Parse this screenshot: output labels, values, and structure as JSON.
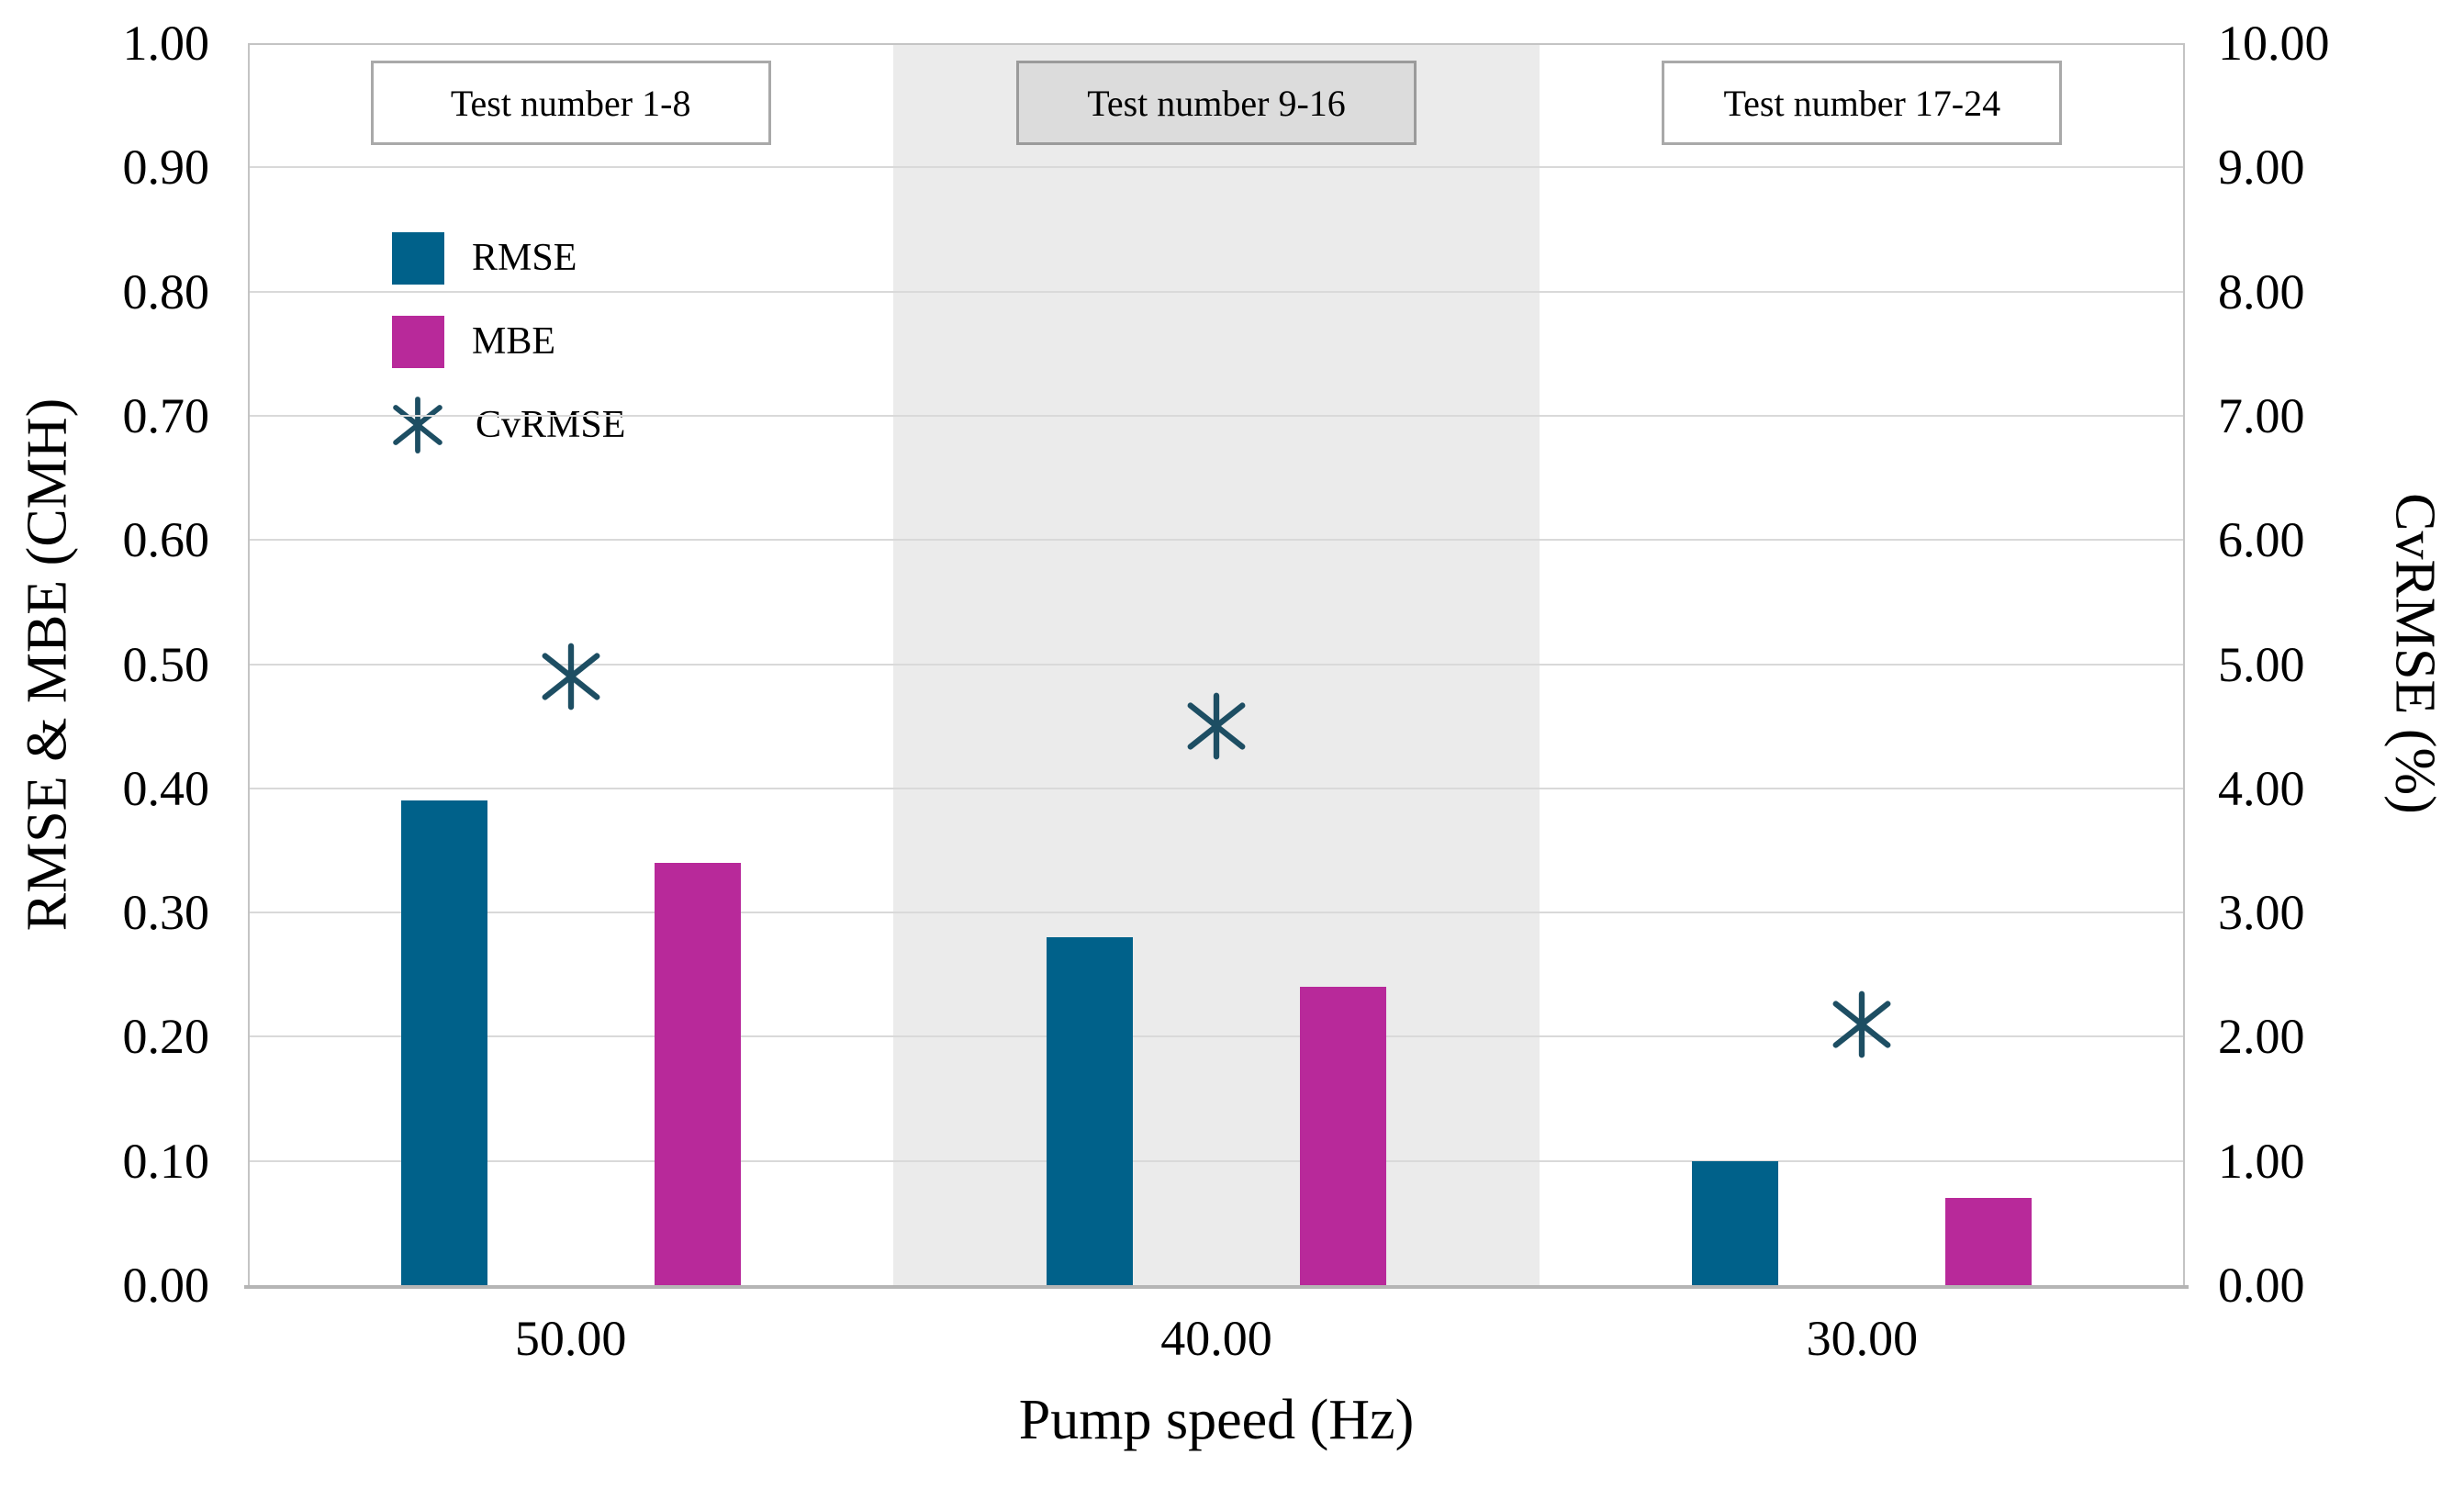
{
  "chart_data": {
    "type": "bar",
    "title": "",
    "xlabel": "Pump speed (Hz)",
    "ylabel_left": "RMSE & MBE (CMH)",
    "ylabel_right": "CvRMSE (%)",
    "categories": [
      "50.00",
      "40.00",
      "30.00"
    ],
    "series": [
      {
        "name": "RMSE",
        "render": "bar",
        "axis": "left",
        "color": "#00618a",
        "values": [
          0.39,
          0.28,
          0.1
        ]
      },
      {
        "name": "MBE",
        "render": "bar",
        "axis": "left",
        "color": "#b8299a",
        "values": [
          0.34,
          0.24,
          0.07
        ]
      },
      {
        "name": "CvRMSE",
        "render": "marker",
        "axis": "right",
        "color": "#1d4e63",
        "values": [
          4.9,
          4.5,
          2.1
        ]
      }
    ],
    "ylim_left": [
      0.0,
      1.0
    ],
    "ylim_right": [
      0.0,
      10.0
    ],
    "left_axis_ticks": [
      "0.00",
      "0.10",
      "0.20",
      "0.30",
      "0.40",
      "0.50",
      "0.60",
      "0.70",
      "0.80",
      "0.90",
      "1.00"
    ],
    "right_axis_ticks": [
      "0.00",
      "1.00",
      "2.00",
      "3.00",
      "4.00",
      "5.00",
      "6.00",
      "7.00",
      "8.00",
      "9.00",
      "10.00"
    ],
    "grid": "horizontal",
    "legend_position": "upper-left-inside",
    "annotations": [
      {
        "label": "Test number 1-8",
        "category_index": 0,
        "shaded": false
      },
      {
        "label": "Test number 9-16",
        "category_index": 1,
        "shaded": true
      },
      {
        "label": "Test number 17-24",
        "category_index": 2,
        "shaded": false
      }
    ],
    "shaded_region": {
      "category_index": 1,
      "color": "#ebebeb"
    }
  },
  "colors": {
    "gridline": "#d9d9d9",
    "axis_line": "#b5b5b5",
    "plot_border": "#c4c4c4",
    "annotation_box_fill": "#ffffff",
    "annotation_box_fill_shaded": "#dcdcdc",
    "annotation_box_border": "#a9a9a9",
    "text": "#000000"
  }
}
